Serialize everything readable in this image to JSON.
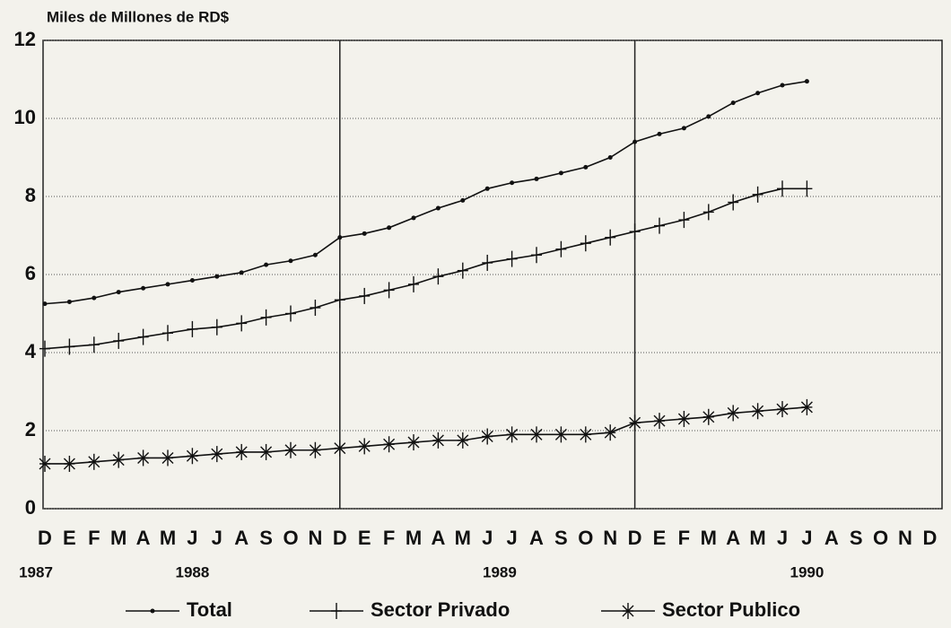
{
  "chart_data": {
    "type": "line",
    "y_axis_label": "Miles de Millones de RD$",
    "categories": [
      "D",
      "E",
      "F",
      "M",
      "A",
      "M",
      "J",
      "J",
      "A",
      "S",
      "O",
      "N",
      "D",
      "E",
      "F",
      "M",
      "A",
      "M",
      "J",
      "J",
      "A",
      "S",
      "O",
      "N",
      "D",
      "E",
      "F",
      "M",
      "A",
      "M",
      "J",
      "J",
      "A",
      "S",
      "O",
      "N",
      "D"
    ],
    "years": [
      "1987",
      "1988",
      "1989",
      "1990"
    ],
    "ylim": [
      0,
      12
    ],
    "yticks": [
      0,
      2,
      4,
      6,
      8,
      10,
      12
    ],
    "grid": true,
    "legend": "bottom",
    "series": [
      {
        "name": "Total",
        "color": "#111111",
        "marker": "dot",
        "values": [
          5.25,
          5.3,
          5.4,
          5.55,
          5.65,
          5.75,
          5.85,
          5.95,
          6.05,
          6.25,
          6.35,
          6.5,
          6.95,
          7.05,
          7.2,
          7.45,
          7.7,
          7.9,
          8.2,
          8.35,
          8.45,
          8.6,
          8.75,
          9.0,
          9.4,
          9.6,
          9.75,
          10.05,
          10.4,
          10.65,
          10.85,
          10.95,
          null,
          null,
          null,
          null,
          null
        ]
      },
      {
        "name": "Sector Privado",
        "color": "#111111",
        "marker": "plus",
        "values": [
          4.1,
          4.15,
          4.2,
          4.3,
          4.4,
          4.5,
          4.6,
          4.65,
          4.75,
          4.9,
          5.0,
          5.15,
          5.35,
          5.45,
          5.6,
          5.75,
          5.95,
          6.1,
          6.3,
          6.4,
          6.5,
          6.65,
          6.8,
          6.95,
          7.1,
          7.25,
          7.4,
          7.6,
          7.85,
          8.05,
          8.2,
          8.2,
          null,
          null,
          null,
          null,
          null
        ]
      },
      {
        "name": "Sector Publico",
        "color": "#111111",
        "marker": "star",
        "values": [
          1.15,
          1.15,
          1.2,
          1.25,
          1.3,
          1.3,
          1.35,
          1.4,
          1.45,
          1.45,
          1.5,
          1.5,
          1.55,
          1.6,
          1.65,
          1.7,
          1.75,
          1.75,
          1.85,
          1.9,
          1.9,
          1.9,
          1.9,
          1.95,
          2.2,
          2.25,
          2.3,
          2.35,
          2.45,
          2.5,
          2.55,
          2.6,
          null,
          null,
          null,
          null,
          null
        ]
      }
    ]
  }
}
